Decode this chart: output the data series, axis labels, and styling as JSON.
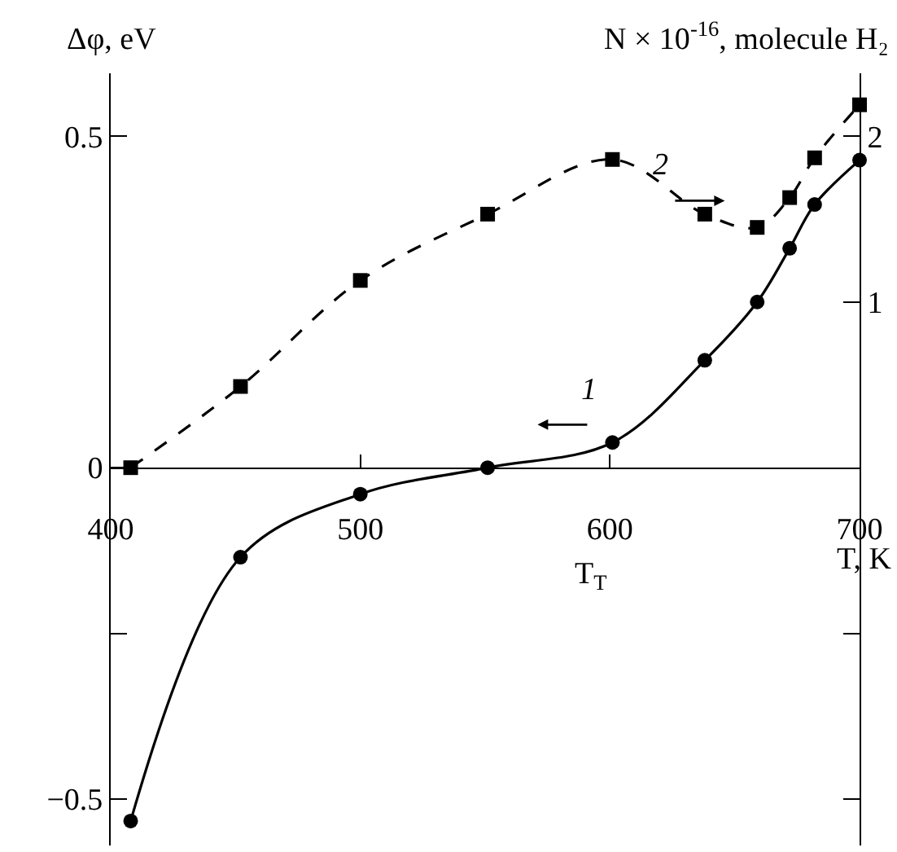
{
  "chart_data": {
    "type": "line",
    "ylabel": "Δφ, eV",
    "y2label": "N × 10$^{-16}$, molecule H₂",
    "xlabel": "T, K",
    "xlim": [
      400,
      700
    ],
    "xticks": [
      400,
      500,
      600,
      700
    ],
    "ylim": [
      -0.57,
      0.595
    ],
    "yticks": [
      0.5,
      0,
      {
        "value": -0.25,
        "label": null
      },
      -0.5
    ],
    "y2lim": [
      -2.28,
      2.38
    ],
    "y2ticks": [
      2,
      1,
      {
        "value": -1,
        "label": null
      },
      {
        "value": -2,
        "label": null
      }
    ],
    "x": [
      408,
      452,
      500,
      551,
      601,
      638,
      659,
      672,
      682,
      700
    ],
    "series": [
      {
        "color": "#000000",
        "marker": "circle",
        "line_style": "solid",
        "axis": "y",
        "values": [
          -0.533,
          -0.135,
          -0.04,
          0,
          0.038,
          0.162,
          0.25,
          0.331,
          0.397,
          0.464
        ]
      },
      {
        "color": "#000000",
        "marker": "square",
        "line_style": "dashed",
        "axis": "y2",
        "values": [
          0,
          0.49,
          1.13,
          1.53,
          1.86,
          1.53,
          1.45,
          1.63,
          1.87,
          2.19
        ]
      }
    ],
    "annotations": [
      "1",
      "2",
      "T$_{T}$"
    ],
    "legend": false
  }
}
